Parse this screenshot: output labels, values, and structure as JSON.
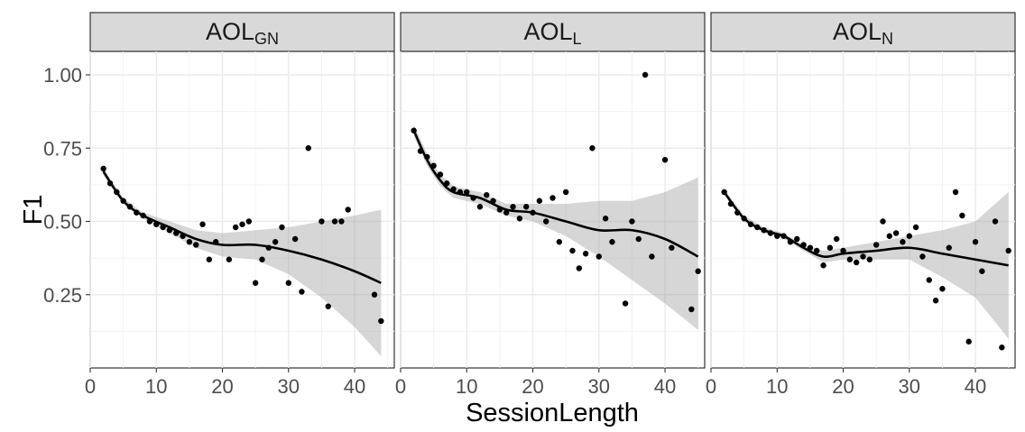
{
  "chart_data": {
    "type": "scatter",
    "xlabel": "SessionLength",
    "ylabel": "F1",
    "xlim": [
      0,
      46
    ],
    "ylim": [
      0.0,
      1.08
    ],
    "x_ticks": [
      0,
      10,
      20,
      30,
      40
    ],
    "x_tick_labels": [
      "0",
      "10",
      "20",
      "30",
      "40"
    ],
    "y_ticks": [
      0.25,
      0.5,
      0.75,
      1.0
    ],
    "y_tick_labels": [
      "0.25",
      "0.50",
      "0.75",
      "1.00"
    ],
    "grid": true,
    "panels": [
      {
        "title": "AOL",
        "subscript": "GN",
        "points": [
          [
            2,
            0.68
          ],
          [
            3,
            0.63
          ],
          [
            4,
            0.6
          ],
          [
            5,
            0.57
          ],
          [
            6,
            0.55
          ],
          [
            7,
            0.53
          ],
          [
            8,
            0.52
          ],
          [
            9,
            0.5
          ],
          [
            10,
            0.49
          ],
          [
            11,
            0.48
          ],
          [
            12,
            0.47
          ],
          [
            13,
            0.46
          ],
          [
            14,
            0.45
          ],
          [
            15,
            0.43
          ],
          [
            16,
            0.42
          ],
          [
            17,
            0.49
          ],
          [
            18,
            0.37
          ],
          [
            19,
            0.43
          ],
          [
            21,
            0.37
          ],
          [
            22,
            0.48
          ],
          [
            23,
            0.49
          ],
          [
            24,
            0.5
          ],
          [
            25,
            0.29
          ],
          [
            26,
            0.37
          ],
          [
            27,
            0.41
          ],
          [
            28,
            0.43
          ],
          [
            29,
            0.48
          ],
          [
            30,
            0.29
          ],
          [
            31,
            0.44
          ],
          [
            32,
            0.26
          ],
          [
            33,
            0.75
          ],
          [
            35,
            0.5
          ],
          [
            36,
            0.21
          ],
          [
            37,
            0.5
          ],
          [
            38,
            0.5
          ],
          [
            39,
            0.54
          ],
          [
            43,
            0.25
          ],
          [
            44,
            0.16
          ]
        ],
        "smooth": [
          [
            2,
            0.67
          ],
          [
            5,
            0.57
          ],
          [
            8,
            0.52
          ],
          [
            12,
            0.48
          ],
          [
            16,
            0.44
          ],
          [
            20,
            0.42
          ],
          [
            25,
            0.42
          ],
          [
            30,
            0.4
          ],
          [
            35,
            0.37
          ],
          [
            40,
            0.33
          ],
          [
            44,
            0.29
          ]
        ],
        "ribbon_upper": [
          [
            2,
            0.68
          ],
          [
            5,
            0.58
          ],
          [
            8,
            0.53
          ],
          [
            12,
            0.5
          ],
          [
            16,
            0.47
          ],
          [
            20,
            0.46
          ],
          [
            25,
            0.47
          ],
          [
            30,
            0.48
          ],
          [
            35,
            0.5
          ],
          [
            40,
            0.52
          ],
          [
            44,
            0.54
          ]
        ],
        "ribbon_lower": [
          [
            2,
            0.66
          ],
          [
            5,
            0.56
          ],
          [
            8,
            0.51
          ],
          [
            12,
            0.46
          ],
          [
            16,
            0.41
          ],
          [
            20,
            0.38
          ],
          [
            25,
            0.37
          ],
          [
            30,
            0.32
          ],
          [
            35,
            0.24
          ],
          [
            40,
            0.14
          ],
          [
            44,
            0.04
          ]
        ]
      },
      {
        "title": "AOL",
        "subscript": "L",
        "points": [
          [
            2,
            0.81
          ],
          [
            3,
            0.74
          ],
          [
            4,
            0.72
          ],
          [
            5,
            0.69
          ],
          [
            6,
            0.66
          ],
          [
            7,
            0.63
          ],
          [
            8,
            0.61
          ],
          [
            9,
            0.6
          ],
          [
            10,
            0.6
          ],
          [
            11,
            0.58
          ],
          [
            12,
            0.55
          ],
          [
            13,
            0.59
          ],
          [
            14,
            0.57
          ],
          [
            15,
            0.54
          ],
          [
            16,
            0.53
          ],
          [
            17,
            0.55
          ],
          [
            18,
            0.51
          ],
          [
            19,
            0.55
          ],
          [
            20,
            0.53
          ],
          [
            21,
            0.57
          ],
          [
            22,
            0.5
          ],
          [
            23,
            0.58
          ],
          [
            24,
            0.43
          ],
          [
            25,
            0.6
          ],
          [
            26,
            0.4
          ],
          [
            27,
            0.34
          ],
          [
            28,
            0.39
          ],
          [
            29,
            0.75
          ],
          [
            30,
            0.38
          ],
          [
            31,
            0.51
          ],
          [
            32,
            0.43
          ],
          [
            34,
            0.22
          ],
          [
            35,
            0.5
          ],
          [
            36,
            0.44
          ],
          [
            37,
            1.0
          ],
          [
            38,
            0.38
          ],
          [
            40,
            0.71
          ],
          [
            41,
            0.41
          ],
          [
            44,
            0.2
          ],
          [
            45,
            0.33
          ]
        ],
        "smooth": [
          [
            2,
            0.81
          ],
          [
            4,
            0.71
          ],
          [
            6,
            0.64
          ],
          [
            8,
            0.6
          ],
          [
            12,
            0.58
          ],
          [
            16,
            0.54
          ],
          [
            20,
            0.53
          ],
          [
            25,
            0.5
          ],
          [
            30,
            0.47
          ],
          [
            35,
            0.47
          ],
          [
            40,
            0.44
          ],
          [
            45,
            0.38
          ]
        ],
        "ribbon_upper": [
          [
            2,
            0.83
          ],
          [
            4,
            0.73
          ],
          [
            6,
            0.66
          ],
          [
            8,
            0.62
          ],
          [
            12,
            0.6
          ],
          [
            16,
            0.56
          ],
          [
            20,
            0.56
          ],
          [
            25,
            0.56
          ],
          [
            30,
            0.57
          ],
          [
            35,
            0.57
          ],
          [
            40,
            0.6
          ],
          [
            45,
            0.65
          ]
        ],
        "ribbon_lower": [
          [
            2,
            0.79
          ],
          [
            4,
            0.69
          ],
          [
            6,
            0.62
          ],
          [
            8,
            0.58
          ],
          [
            12,
            0.56
          ],
          [
            16,
            0.52
          ],
          [
            20,
            0.5
          ],
          [
            25,
            0.45
          ],
          [
            30,
            0.38
          ],
          [
            35,
            0.3
          ],
          [
            40,
            0.22
          ],
          [
            45,
            0.13
          ]
        ]
      },
      {
        "title": "AOL",
        "subscript": "N",
        "points": [
          [
            2,
            0.6
          ],
          [
            3,
            0.56
          ],
          [
            4,
            0.53
          ],
          [
            5,
            0.51
          ],
          [
            6,
            0.49
          ],
          [
            7,
            0.48
          ],
          [
            8,
            0.47
          ],
          [
            9,
            0.46
          ],
          [
            10,
            0.45
          ],
          [
            11,
            0.45
          ],
          [
            12,
            0.43
          ],
          [
            13,
            0.44
          ],
          [
            14,
            0.42
          ],
          [
            15,
            0.41
          ],
          [
            16,
            0.4
          ],
          [
            17,
            0.35
          ],
          [
            18,
            0.41
          ],
          [
            19,
            0.44
          ],
          [
            20,
            0.4
          ],
          [
            21,
            0.37
          ],
          [
            22,
            0.36
          ],
          [
            23,
            0.38
          ],
          [
            24,
            0.37
          ],
          [
            25,
            0.42
          ],
          [
            26,
            0.5
          ],
          [
            27,
            0.45
          ],
          [
            28,
            0.46
          ],
          [
            29,
            0.43
          ],
          [
            30,
            0.45
          ],
          [
            31,
            0.48
          ],
          [
            32,
            0.38
          ],
          [
            33,
            0.3
          ],
          [
            34,
            0.23
          ],
          [
            35,
            0.27
          ],
          [
            36,
            0.41
          ],
          [
            37,
            0.6
          ],
          [
            38,
            0.52
          ],
          [
            39,
            0.09
          ],
          [
            40,
            0.43
          ],
          [
            41,
            0.33
          ],
          [
            43,
            0.5
          ],
          [
            44,
            0.07
          ],
          [
            45,
            0.4
          ]
        ],
        "smooth": [
          [
            2,
            0.6
          ],
          [
            5,
            0.51
          ],
          [
            8,
            0.47
          ],
          [
            11,
            0.45
          ],
          [
            14,
            0.41
          ],
          [
            17,
            0.38
          ],
          [
            20,
            0.39
          ],
          [
            25,
            0.4
          ],
          [
            30,
            0.41
          ],
          [
            35,
            0.39
          ],
          [
            40,
            0.37
          ],
          [
            45,
            0.35
          ]
        ],
        "ribbon_upper": [
          [
            2,
            0.61
          ],
          [
            5,
            0.52
          ],
          [
            8,
            0.48
          ],
          [
            11,
            0.46
          ],
          [
            14,
            0.42
          ],
          [
            17,
            0.4
          ],
          [
            20,
            0.41
          ],
          [
            25,
            0.43
          ],
          [
            30,
            0.45
          ],
          [
            35,
            0.47
          ],
          [
            40,
            0.5
          ],
          [
            45,
            0.6
          ]
        ],
        "ribbon_lower": [
          [
            2,
            0.59
          ],
          [
            5,
            0.5
          ],
          [
            8,
            0.46
          ],
          [
            11,
            0.44
          ],
          [
            14,
            0.4
          ],
          [
            17,
            0.36
          ],
          [
            20,
            0.37
          ],
          [
            25,
            0.37
          ],
          [
            30,
            0.37
          ],
          [
            35,
            0.31
          ],
          [
            40,
            0.24
          ],
          [
            45,
            0.1
          ]
        ]
      }
    ]
  }
}
